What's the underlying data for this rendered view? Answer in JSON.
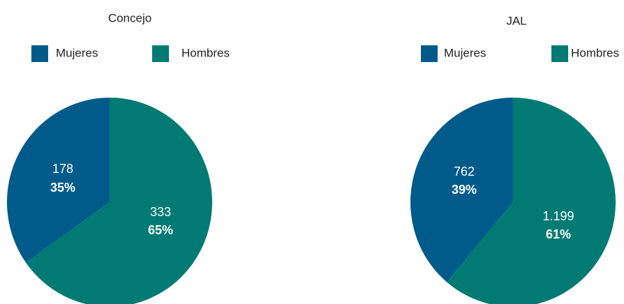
{
  "chart_data": [
    {
      "type": "pie",
      "title": "Concejo",
      "categories": [
        "Mujeres",
        "Hombres"
      ],
      "values": [
        178,
        333
      ],
      "percentages": [
        35,
        65
      ],
      "percent_labels": [
        "35%",
        "65%"
      ],
      "colors": [
        "#005b8a",
        "#007a73"
      ]
    },
    {
      "type": "pie",
      "title": "JAL",
      "categories": [
        "Mujeres",
        "Hombres"
      ],
      "values": [
        762,
        1199
      ],
      "value_labels": [
        "762",
        "1.199"
      ],
      "percentages": [
        39,
        61
      ],
      "percent_labels": [
        "39%",
        "61%"
      ],
      "colors": [
        "#005b8a",
        "#007a73"
      ]
    }
  ]
}
